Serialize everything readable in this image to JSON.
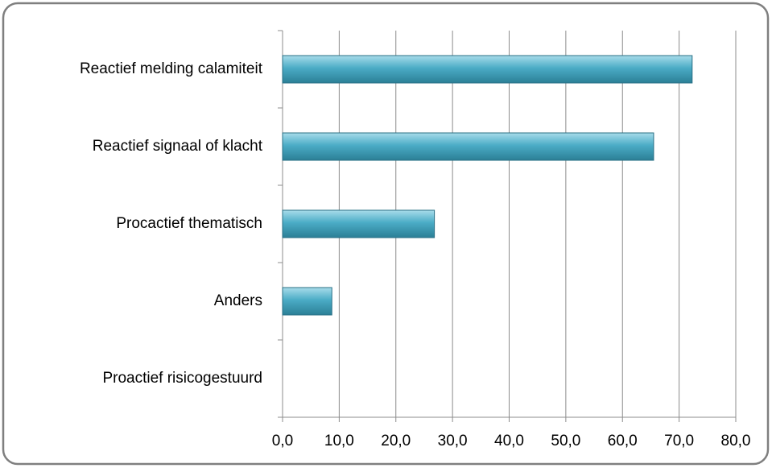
{
  "chart_data": {
    "type": "bar",
    "orientation": "horizontal",
    "categories": [
      "Reactief  melding calamiteit",
      "Reactief signaal of klacht",
      "Procactief thematisch",
      "Anders",
      "Proactief risicogestuurd"
    ],
    "values": [
      72.3,
      65.5,
      26.8,
      8.7,
      0
    ],
    "color": "#4bacc6",
    "xlim": [
      0,
      80
    ],
    "xticks": [
      {
        "value": 0,
        "label": "0,0"
      },
      {
        "value": 10,
        "label": "10,0"
      },
      {
        "value": 20,
        "label": "20,0"
      },
      {
        "value": 30,
        "label": "30,0"
      },
      {
        "value": 40,
        "label": "40,0"
      },
      {
        "value": 50,
        "label": "50,0"
      },
      {
        "value": 60,
        "label": "60,0"
      },
      {
        "value": 70,
        "label": "70,0"
      },
      {
        "value": 80,
        "label": "80,0"
      }
    ],
    "grid": true
  }
}
